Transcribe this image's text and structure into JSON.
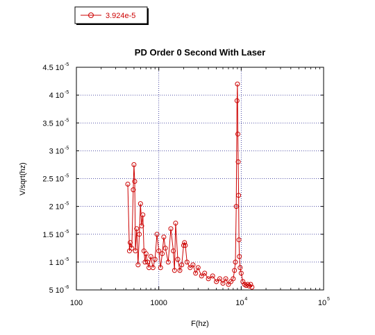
{
  "chart_data": {
    "type": "line",
    "title": "PD Order 0 Second With Laser",
    "xlabel": "F(hz)",
    "ylabel": "V/sqrt(hz)",
    "x_scale": "log",
    "xlim": [
      100,
      100000
    ],
    "ylim": [
      5e-06,
      4.5e-05
    ],
    "x_ticks": [
      {
        "value": 100,
        "mantissa": "100",
        "exp": ""
      },
      {
        "value": 1000,
        "mantissa": "1000",
        "exp": ""
      },
      {
        "value": 10000,
        "mantissa": "10",
        "exp": "4"
      },
      {
        "value": 100000,
        "mantissa": "10",
        "exp": "5"
      }
    ],
    "y_ticks": [
      {
        "value": 5e-06,
        "mantissa": "5 10",
        "exp": "-6"
      },
      {
        "value": 1e-05,
        "mantissa": "1 10",
        "exp": "-5"
      },
      {
        "value": 1.5e-05,
        "mantissa": "1.5 10",
        "exp": "-5"
      },
      {
        "value": 2e-05,
        "mantissa": "2 10",
        "exp": "-5"
      },
      {
        "value": 2.5e-05,
        "mantissa": "2.5 10",
        "exp": "-5"
      },
      {
        "value": 3e-05,
        "mantissa": "3 10",
        "exp": "-5"
      },
      {
        "value": 3.5e-05,
        "mantissa": "3.5 10",
        "exp": "-5"
      },
      {
        "value": 4e-05,
        "mantissa": "4 10",
        "exp": "-5"
      },
      {
        "value": 4.5e-05,
        "mantissa": "4.5 10",
        "exp": "-5"
      }
    ],
    "grid": true,
    "legend_position": "top-left",
    "series": [
      {
        "name": "3.924e-5",
        "color": "#cc0000",
        "marker": "open-circle",
        "x": [
          420,
          440,
          450,
          470,
          490,
          500,
          510,
          520,
          540,
          560,
          580,
          600,
          620,
          640,
          660,
          680,
          700,
          730,
          760,
          800,
          850,
          900,
          950,
          1000,
          1050,
          1100,
          1150,
          1200,
          1300,
          1400,
          1500,
          1550,
          1600,
          1700,
          1800,
          1900,
          2000,
          2050,
          2100,
          2200,
          2400,
          2600,
          2800,
          3000,
          3300,
          3600,
          4000,
          4500,
          5000,
          5500,
          6000,
          6500,
          7000,
          7500,
          8000,
          8300,
          8500,
          8700,
          8900,
          9000,
          9100,
          9200,
          9300,
          9400,
          9500,
          9700,
          10000,
          10500,
          11000,
          11500,
          12000,
          12500,
          13000,
          13500
        ],
        "y": [
          2.4e-05,
          1.2e-05,
          1.35e-05,
          1.25e-05,
          2.3e-05,
          2.75e-05,
          2.45e-05,
          1.2e-05,
          1.6e-05,
          9.5e-06,
          1.5e-05,
          2.05e-05,
          1.65e-05,
          1.85e-05,
          1.2e-05,
          1e-05,
          1.15e-05,
          1e-05,
          9e-06,
          1.1e-05,
          9e-06,
          1.05e-05,
          1.5e-05,
          1.2e-05,
          9e-06,
          1.15e-05,
          1.45e-05,
          1.25e-05,
          1e-05,
          1.6e-05,
          1.2e-05,
          8.5e-06,
          1.7e-05,
          1.05e-05,
          8.5e-06,
          9.5e-06,
          1.3e-05,
          1.35e-05,
          1.3e-05,
          1e-05,
          9e-06,
          9.5e-06,
          8e-06,
          9e-06,
          7.5e-06,
          8e-06,
          7e-06,
          7.5e-06,
          6.5e-06,
          7e-06,
          6.2e-06,
          7e-06,
          6e-06,
          6.5e-06,
          7e-06,
          8.5e-06,
          1e-05,
          2e-05,
          3.9e-05,
          4.2e-05,
          3.3e-05,
          2.8e-05,
          2.2e-05,
          1.4e-05,
          1.1e-05,
          9e-06,
          8e-06,
          6.5e-06,
          6e-06,
          5.8e-06,
          6e-06,
          5.7e-06,
          6e-06,
          5.5e-06
        ]
      }
    ]
  }
}
